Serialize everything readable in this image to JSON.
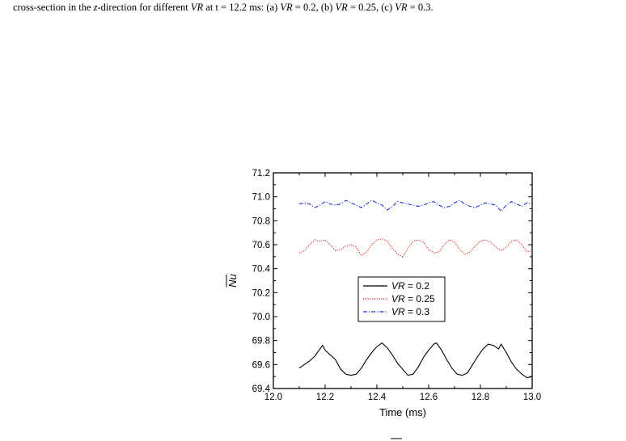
{
  "caption": {
    "prefix": "cross-section in the ",
    "z": "z",
    "mid1": "-direction for different ",
    "vr": "VR",
    "mid2": " at t = 12.2 ms: (a) ",
    "a": " = 0.2, (b) ",
    "b": " = 0.25, (c) ",
    "c": " = 0.3."
  },
  "chart_data": {
    "type": "line",
    "xlabel": "Time (ms)",
    "ylabel": "Nu",
    "xlim": [
      12.0,
      13.0
    ],
    "ylim": [
      69.4,
      71.2
    ],
    "xticks": [
      "12.0",
      "12.2",
      "12.4",
      "12.6",
      "12.8",
      "13.0"
    ],
    "yticks": [
      "69.4",
      "69.6",
      "69.8",
      "70.0",
      "70.2",
      "70.4",
      "70.6",
      "70.8",
      "71.0",
      "71.2"
    ],
    "legend_placement": "center-right",
    "series": [
      {
        "name": "VR = 0.2",
        "name_prefix": "VR",
        "name_value": " = 0.2",
        "color": "#000000",
        "dash": "solid",
        "points": [
          [
            12.1,
            69.57
          ],
          [
            12.12,
            69.6
          ],
          [
            12.14,
            69.63
          ],
          [
            12.16,
            69.67
          ],
          [
            12.18,
            69.73
          ],
          [
            12.19,
            69.76
          ],
          [
            12.2,
            69.72
          ],
          [
            12.22,
            69.68
          ],
          [
            12.24,
            69.64
          ],
          [
            12.26,
            69.56
          ],
          [
            12.28,
            69.52
          ],
          [
            12.3,
            69.51
          ],
          [
            12.32,
            69.52
          ],
          [
            12.34,
            69.57
          ],
          [
            12.36,
            69.64
          ],
          [
            12.38,
            69.7
          ],
          [
            12.4,
            69.75
          ],
          [
            12.42,
            69.78
          ],
          [
            12.44,
            69.74
          ],
          [
            12.46,
            69.68
          ],
          [
            12.48,
            69.61
          ],
          [
            12.5,
            69.56
          ],
          [
            12.52,
            69.51
          ],
          [
            12.54,
            69.52
          ],
          [
            12.56,
            69.58
          ],
          [
            12.58,
            69.66
          ],
          [
            12.6,
            69.72
          ],
          [
            12.62,
            69.77
          ],
          [
            12.63,
            69.78
          ],
          [
            12.65,
            69.72
          ],
          [
            12.67,
            69.64
          ],
          [
            12.69,
            69.57
          ],
          [
            12.71,
            69.52
          ],
          [
            12.73,
            69.51
          ],
          [
            12.75,
            69.53
          ],
          [
            12.77,
            69.6
          ],
          [
            12.79,
            69.67
          ],
          [
            12.81,
            69.73
          ],
          [
            12.83,
            69.77
          ],
          [
            12.85,
            69.76
          ],
          [
            12.87,
            69.73
          ],
          [
            12.88,
            69.77
          ],
          [
            12.9,
            69.7
          ],
          [
            12.92,
            69.62
          ],
          [
            12.94,
            69.56
          ],
          [
            12.96,
            69.52
          ],
          [
            12.98,
            69.49
          ],
          [
            13.0,
            69.5
          ]
        ]
      },
      {
        "name": "VR = 0.25",
        "name_prefix": "VR",
        "name_value": " = 0.25",
        "color": "#e8211f",
        "dash": "dotted",
        "points": [
          [
            12.1,
            70.53
          ],
          [
            12.12,
            70.55
          ],
          [
            12.14,
            70.6
          ],
          [
            12.16,
            70.64
          ],
          [
            12.18,
            70.63
          ],
          [
            12.2,
            70.64
          ],
          [
            12.22,
            70.6
          ],
          [
            12.24,
            70.55
          ],
          [
            12.26,
            70.56
          ],
          [
            12.28,
            70.59
          ],
          [
            12.3,
            70.6
          ],
          [
            12.32,
            70.58
          ],
          [
            12.34,
            70.51
          ],
          [
            12.36,
            70.54
          ],
          [
            12.38,
            70.6
          ],
          [
            12.4,
            70.64
          ],
          [
            12.42,
            70.65
          ],
          [
            12.44,
            70.63
          ],
          [
            12.46,
            70.57
          ],
          [
            12.48,
            70.52
          ],
          [
            12.5,
            70.5
          ],
          [
            12.52,
            70.57
          ],
          [
            12.54,
            70.63
          ],
          [
            12.56,
            70.64
          ],
          [
            12.58,
            70.62
          ],
          [
            12.6,
            70.56
          ],
          [
            12.62,
            70.53
          ],
          [
            12.64,
            70.54
          ],
          [
            12.66,
            70.6
          ],
          [
            12.68,
            70.64
          ],
          [
            12.7,
            70.62
          ],
          [
            12.72,
            70.56
          ],
          [
            12.74,
            70.52
          ],
          [
            12.76,
            70.54
          ],
          [
            12.78,
            70.59
          ],
          [
            12.8,
            70.63
          ],
          [
            12.82,
            70.64
          ],
          [
            12.84,
            70.62
          ],
          [
            12.86,
            70.58
          ],
          [
            12.88,
            70.55
          ],
          [
            12.9,
            70.58
          ],
          [
            12.92,
            70.63
          ],
          [
            12.94,
            70.64
          ],
          [
            12.96,
            70.6
          ],
          [
            12.98,
            70.54
          ],
          [
            13.0,
            70.55
          ]
        ]
      },
      {
        "name": "VR = 0.3",
        "name_prefix": "VR",
        "name_value": " = 0.3",
        "color": "#2033d4",
        "dash": "dashdot",
        "points": [
          [
            12.1,
            70.94
          ],
          [
            12.12,
            70.95
          ],
          [
            12.14,
            70.94
          ],
          [
            12.16,
            70.91
          ],
          [
            12.18,
            70.93
          ],
          [
            12.2,
            70.96
          ],
          [
            12.22,
            70.94
          ],
          [
            12.24,
            70.93
          ],
          [
            12.26,
            70.94
          ],
          [
            12.28,
            70.97
          ],
          [
            12.3,
            70.95
          ],
          [
            12.32,
            70.93
          ],
          [
            12.34,
            70.91
          ],
          [
            12.36,
            70.94
          ],
          [
            12.38,
            70.97
          ],
          [
            12.4,
            70.95
          ],
          [
            12.42,
            70.93
          ],
          [
            12.44,
            70.89
          ],
          [
            12.46,
            70.92
          ],
          [
            12.48,
            70.96
          ],
          [
            12.5,
            70.95
          ],
          [
            12.52,
            70.94
          ],
          [
            12.54,
            70.93
          ],
          [
            12.56,
            70.92
          ],
          [
            12.58,
            70.93
          ],
          [
            12.6,
            70.95
          ],
          [
            12.62,
            70.96
          ],
          [
            12.64,
            70.93
          ],
          [
            12.66,
            70.91
          ],
          [
            12.68,
            70.92
          ],
          [
            12.7,
            70.95
          ],
          [
            12.72,
            70.97
          ],
          [
            12.74,
            70.94
          ],
          [
            12.76,
            70.92
          ],
          [
            12.78,
            70.91
          ],
          [
            12.8,
            70.93
          ],
          [
            12.82,
            70.95
          ],
          [
            12.84,
            70.94
          ],
          [
            12.86,
            70.93
          ],
          [
            12.88,
            70.88
          ],
          [
            12.9,
            70.93
          ],
          [
            12.92,
            70.96
          ],
          [
            12.94,
            70.94
          ],
          [
            12.96,
            70.92
          ],
          [
            12.98,
            70.95
          ],
          [
            13.0,
            70.94
          ]
        ]
      }
    ]
  }
}
